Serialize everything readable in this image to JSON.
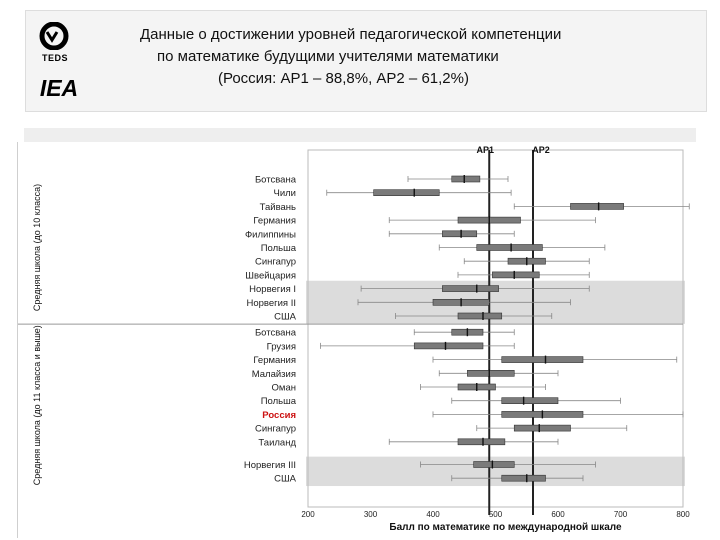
{
  "logos": {
    "teds_text": "TEDS",
    "iea_text": "IEA"
  },
  "title": {
    "line1": "Данные о достижении уровней педагогической компетенции",
    "line2": "по математике будущими учителями математики",
    "line3": "(Россия: АР1 – 88,8%, АР2 – 61,2%)"
  },
  "colors": {
    "box": "#7a7a7a",
    "shade": "#dcdcdc",
    "highlight": "#cc1111",
    "ref_line": "#222222"
  },
  "chart_data": {
    "type": "boxplot",
    "xlabel": "Балл по математике по международной шкале",
    "xlim": [
      200,
      800
    ],
    "xticks": [
      200,
      300,
      400,
      500,
      600,
      700,
      800
    ],
    "reference_lines": [
      {
        "label": "AP1",
        "value": 490
      },
      {
        "label": "AP2",
        "value": 560
      }
    ],
    "groups": [
      {
        "label": "Средняя школа (до 10 класса)",
        "rows": [
          {
            "name": "Ботсвана",
            "whisker": [
              360,
              520
            ],
            "box": [
              430,
              475
            ],
            "median": 450,
            "shaded": false,
            "highlight": false
          },
          {
            "name": "Чили",
            "whisker": [
              230,
              525
            ],
            "box": [
              305,
              410
            ],
            "median": 370,
            "shaded": false,
            "highlight": false
          },
          {
            "name": "Тайвань",
            "whisker": [
              530,
              810
            ],
            "box": [
              620,
              705
            ],
            "median": 665,
            "shaded": false,
            "highlight": false
          },
          {
            "name": "Германия",
            "whisker": [
              330,
              660
            ],
            "box": [
              440,
              540
            ],
            "median": 490,
            "shaded": false,
            "highlight": false
          },
          {
            "name": "Филиппины",
            "whisker": [
              330,
              530
            ],
            "box": [
              415,
              470
            ],
            "median": 445,
            "shaded": false,
            "highlight": false
          },
          {
            "name": "Польша",
            "whisker": [
              410,
              675
            ],
            "box": [
              470,
              575
            ],
            "median": 525,
            "shaded": false,
            "highlight": false
          },
          {
            "name": "Сингапур",
            "whisker": [
              450,
              650
            ],
            "box": [
              520,
              580
            ],
            "median": 550,
            "shaded": false,
            "highlight": false
          },
          {
            "name": "Швейцария",
            "whisker": [
              440,
              650
            ],
            "box": [
              495,
              570
            ],
            "median": 530,
            "shaded": false,
            "highlight": false
          },
          {
            "name": "Норвегия I",
            "whisker": [
              285,
              650
            ],
            "box": [
              415,
              505
            ],
            "median": 470,
            "shaded": true,
            "highlight": false
          },
          {
            "name": "Норвегия II",
            "whisker": [
              280,
              620
            ],
            "box": [
              400,
              490
            ],
            "median": 445,
            "shaded": true,
            "highlight": false
          },
          {
            "name": "США",
            "whisker": [
              340,
              590
            ],
            "box": [
              440,
              510
            ],
            "median": 480,
            "shaded": true,
            "highlight": false
          }
        ]
      },
      {
        "label": "Средняя школа (до 11 класса и выше)",
        "rows": [
          {
            "name": "Ботсвана",
            "whisker": [
              370,
              530
            ],
            "box": [
              430,
              480
            ],
            "median": 455,
            "shaded": false,
            "highlight": false
          },
          {
            "name": "Грузия",
            "whisker": [
              220,
              530
            ],
            "box": [
              370,
              480
            ],
            "median": 420,
            "shaded": false,
            "highlight": false
          },
          {
            "name": "Германия",
            "whisker": [
              400,
              790
            ],
            "box": [
              510,
              640
            ],
            "median": 580,
            "shaded": false,
            "highlight": false
          },
          {
            "name": "Малайзия",
            "whisker": [
              410,
              600
            ],
            "box": [
              455,
              530
            ],
            "median": 490,
            "shaded": false,
            "highlight": false
          },
          {
            "name": "Оман",
            "whisker": [
              380,
              580
            ],
            "box": [
              440,
              500
            ],
            "median": 470,
            "shaded": false,
            "highlight": false
          },
          {
            "name": "Польша",
            "whisker": [
              430,
              700
            ],
            "box": [
              510,
              600
            ],
            "median": 545,
            "shaded": false,
            "highlight": false
          },
          {
            "name": "Россия",
            "whisker": [
              400,
              800
            ],
            "box": [
              510,
              640
            ],
            "median": 575,
            "shaded": false,
            "highlight": true
          },
          {
            "name": "Сингапур",
            "whisker": [
              470,
              710
            ],
            "box": [
              530,
              620
            ],
            "median": 570,
            "shaded": false,
            "highlight": false
          },
          {
            "name": "Таиланд",
            "whisker": [
              330,
              600
            ],
            "box": [
              440,
              515
            ],
            "median": 480,
            "shaded": false,
            "highlight": false
          },
          {
            "name": "Норвегия III",
            "whisker": [
              380,
              660
            ],
            "box": [
              465,
              530
            ],
            "median": 495,
            "shaded": true,
            "highlight": false
          },
          {
            "name": "США",
            "whisker": [
              430,
              640
            ],
            "box": [
              510,
              580
            ],
            "median": 550,
            "shaded": true,
            "highlight": false
          }
        ]
      }
    ]
  }
}
